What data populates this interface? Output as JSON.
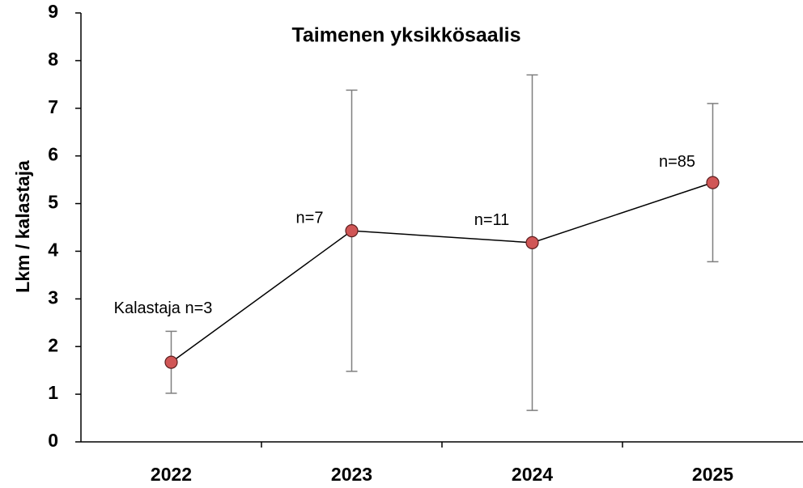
{
  "chart_data": {
    "type": "line",
    "title": "Taimenen yksikkösaalis",
    "y_label": "Lkm / kalastaja",
    "categories": [
      "2022",
      "2023",
      "2024",
      "2025"
    ],
    "series": [
      {
        "values": [
          1.67,
          4.43,
          4.18,
          5.44
        ],
        "errors": [
          0.65,
          2.95,
          3.52,
          1.66
        ],
        "color": "#d05656",
        "line_color": "#000000",
        "error_color": "#7f7f7f"
      }
    ],
    "annotations": [
      "Kalastaja n=3",
      "n=7",
      "n=11",
      "n=85"
    ],
    "ylim": [
      0,
      9
    ],
    "yticks": [
      0,
      1,
      2,
      3,
      4,
      5,
      6,
      7,
      8,
      9
    ]
  }
}
